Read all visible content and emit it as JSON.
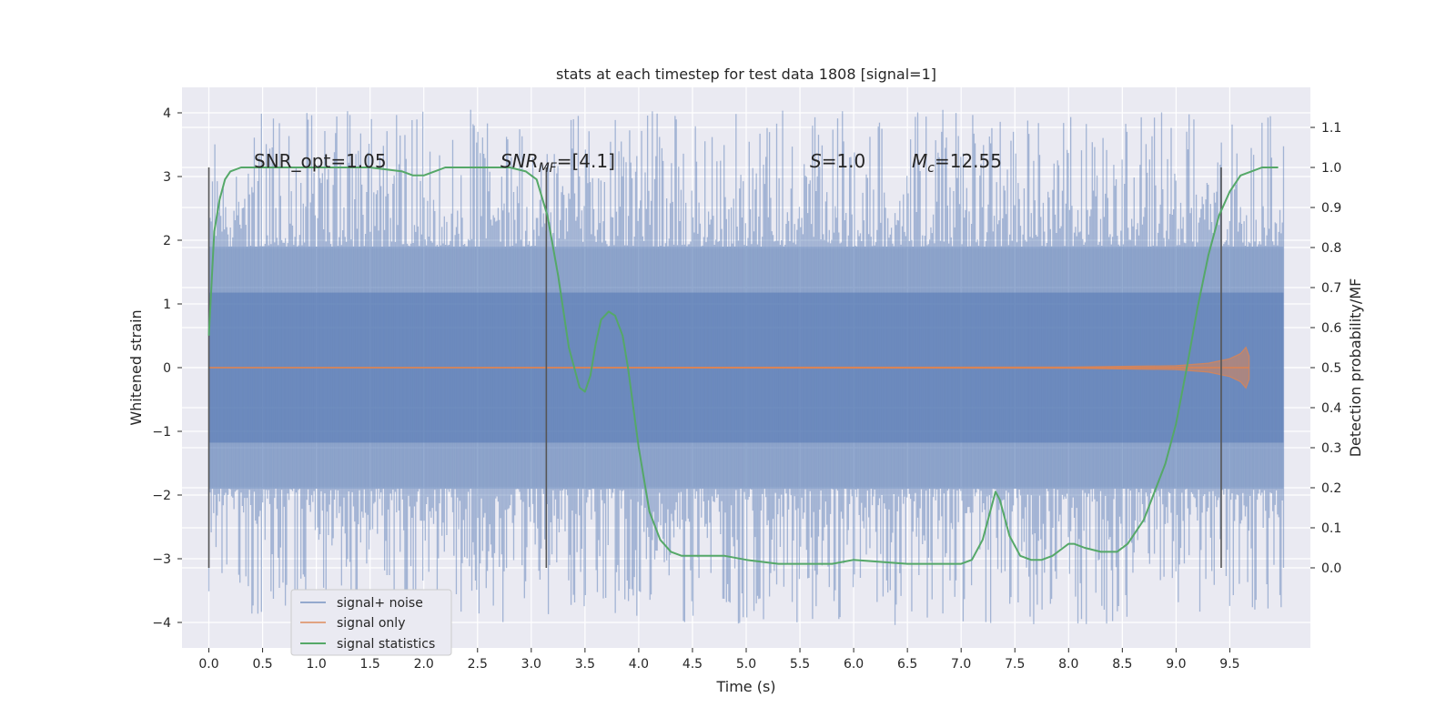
{
  "chart_data": {
    "type": "line",
    "title": "stats at each timestep for test data 1808 [signal=1]",
    "xlabel": "Time (s)",
    "ylabel": "Whitened strain",
    "y2label": "Detection probability/MF",
    "xlim": [
      -0.25,
      10.25
    ],
    "ylim": [
      -4.4,
      4.4
    ],
    "y2lim": [
      -0.2,
      1.2
    ],
    "x_ticks": [
      "0.0",
      "0.5",
      "1.0",
      "1.5",
      "2.0",
      "2.5",
      "3.0",
      "3.5",
      "4.0",
      "4.5",
      "5.0",
      "5.5",
      "6.0",
      "6.5",
      "7.0",
      "7.5",
      "8.0",
      "8.5",
      "9.0",
      "9.5"
    ],
    "y_ticks": [
      "4",
      "3",
      "2",
      "1",
      "0",
      "−1",
      "−2",
      "−3",
      "−4"
    ],
    "y2_ticks": [
      "1.1",
      "1.0",
      "0.9",
      "0.8",
      "0.7",
      "0.6",
      "0.5",
      "0.4",
      "0.3",
      "0.2",
      "0.1",
      "0.0"
    ],
    "grid": true,
    "legend_position": "lower-left",
    "colors": {
      "noise": "#4c72b0",
      "signal": "#dd8452",
      "stats": "#55a868",
      "marker": "#555555",
      "background": "#eaeaf2",
      "grid": "#ffffff"
    },
    "annotations": {
      "snr_opt": "SNR_opt=1.05",
      "snr_mf_name": "SNR",
      "snr_mf_sub": "MF",
      "snr_mf_value": "=[4.1]",
      "s_name": "S",
      "s_value": "=1.0",
      "mc_name": "M",
      "mc_sub": "c",
      "mc_value": "=12.55"
    },
    "series": [
      {
        "name": "signal+ noise",
        "axis": "left",
        "x_range": [
          0.0,
          10.0
        ],
        "typical_range": [
          -1.9,
          1.9
        ],
        "extreme_range": [
          -4.05,
          4.05
        ]
      },
      {
        "name": "signal only",
        "axis": "left",
        "x": [
          0.0,
          8.0,
          9.0,
          9.3,
          9.5,
          9.6,
          9.65,
          9.68
        ],
        "amplitude": [
          0.0,
          0.01,
          0.03,
          0.07,
          0.14,
          0.22,
          0.32,
          0.18
        ]
      },
      {
        "name": "signal statistics",
        "axis": "right",
        "x": [
          0.0,
          0.05,
          0.1,
          0.15,
          0.2,
          0.3,
          0.5,
          1.0,
          1.5,
          1.8,
          1.9,
          2.0,
          2.1,
          2.2,
          2.4,
          2.6,
          2.8,
          2.95,
          3.05,
          3.15,
          3.25,
          3.35,
          3.45,
          3.5,
          3.55,
          3.6,
          3.65,
          3.72,
          3.78,
          3.85,
          3.9,
          4.0,
          4.1,
          4.2,
          4.3,
          4.4,
          4.6,
          4.8,
          5.0,
          5.3,
          5.5,
          5.8,
          6.0,
          6.5,
          6.8,
          7.0,
          7.1,
          7.2,
          7.28,
          7.32,
          7.36,
          7.45,
          7.55,
          7.65,
          7.75,
          7.85,
          7.95,
          8.0,
          8.05,
          8.15,
          8.3,
          8.45,
          8.55,
          8.7,
          8.9,
          9.0,
          9.1,
          9.2,
          9.3,
          9.4,
          9.5,
          9.6,
          9.7,
          9.8,
          9.9,
          9.95
        ],
        "y": [
          0.58,
          0.84,
          0.92,
          0.97,
          0.99,
          1.0,
          1.0,
          1.0,
          1.0,
          0.99,
          0.98,
          0.98,
          0.99,
          1.0,
          1.0,
          1.0,
          1.0,
          0.99,
          0.97,
          0.88,
          0.73,
          0.55,
          0.45,
          0.44,
          0.48,
          0.56,
          0.62,
          0.64,
          0.63,
          0.58,
          0.5,
          0.3,
          0.14,
          0.07,
          0.04,
          0.03,
          0.03,
          0.03,
          0.02,
          0.01,
          0.01,
          0.01,
          0.02,
          0.01,
          0.01,
          0.01,
          0.02,
          0.07,
          0.15,
          0.19,
          0.17,
          0.08,
          0.03,
          0.02,
          0.02,
          0.03,
          0.05,
          0.06,
          0.06,
          0.05,
          0.04,
          0.04,
          0.06,
          0.12,
          0.26,
          0.36,
          0.5,
          0.65,
          0.78,
          0.88,
          0.94,
          0.98,
          0.99,
          1.0,
          1.0,
          1.0
        ]
      }
    ],
    "markers_x": [
      0.0,
      3.14,
      9.42
    ]
  }
}
